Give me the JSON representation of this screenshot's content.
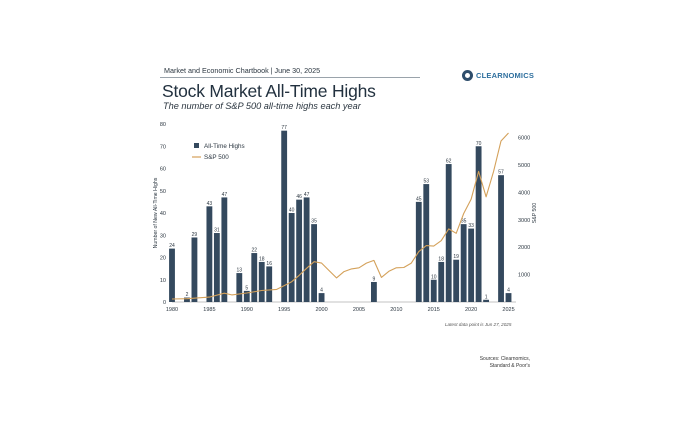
{
  "header": {
    "subheader": "Market and Economic Chartbook | June 30, 2025",
    "title": "Stock Market All-Time Highs",
    "subtitle": "The number of S&P 500 all-time highs each year",
    "logo_text": "CLEARNOMICS"
  },
  "footer": {
    "note": "Latest data point is Jun 27, 2025",
    "sources_line1": "Sources: Clearnomics,",
    "sources_line2": "Standard & Poor's"
  },
  "colors": {
    "bar": "#34495e",
    "line": "#d4a15a",
    "text": "#2b3640"
  },
  "chart_data": {
    "type": "bar",
    "title": "Stock Market All-Time Highs",
    "ylabel": "Number of New All-Time Highs",
    "y2label": "S&P 500",
    "ylim": [
      0,
      80
    ],
    "y2lim": [
      0,
      6500
    ],
    "yticks": [
      0,
      10,
      20,
      30,
      40,
      50,
      60,
      70,
      80
    ],
    "y2ticks": [
      1000,
      2000,
      3000,
      4000,
      5000,
      6000
    ],
    "xlim": [
      1980,
      2026
    ],
    "xticks": [
      1980,
      1985,
      1990,
      1995,
      2000,
      2005,
      2010,
      2015,
      2020,
      2025
    ],
    "legend": {
      "placement": "top-left",
      "bars": "All-Time Highs",
      "line": "S&P 500"
    },
    "series": [
      {
        "name": "All-Time Highs",
        "type": "bar",
        "x": [
          1980,
          1981,
          1982,
          1983,
          1984,
          1985,
          1986,
          1987,
          1988,
          1989,
          1990,
          1991,
          1992,
          1993,
          1994,
          1995,
          1996,
          1997,
          1998,
          1999,
          2000,
          2001,
          2002,
          2003,
          2004,
          2005,
          2006,
          2007,
          2008,
          2009,
          2010,
          2011,
          2012,
          2013,
          2014,
          2015,
          2016,
          2017,
          2018,
          2019,
          2020,
          2021,
          2022,
          2023,
          2024,
          2025
        ],
        "values": [
          24,
          0,
          2,
          29,
          0,
          43,
          31,
          47,
          0,
          13,
          5,
          22,
          18,
          16,
          0,
          77,
          40,
          46,
          47,
          35,
          4,
          0,
          0,
          0,
          0,
          0,
          0,
          9,
          0,
          0,
          0,
          0,
          0,
          45,
          53,
          10,
          18,
          62,
          19,
          35,
          33,
          70,
          1,
          0,
          57,
          4
        ]
      },
      {
        "name": "S&P 500",
        "type": "line",
        "x": [
          1980,
          1982,
          1985,
          1987,
          1988,
          1990,
          1992,
          1994,
          1995,
          1996,
          1997,
          1998,
          1999,
          2000,
          2001,
          2002,
          2003,
          2004,
          2005,
          2006,
          2007,
          2008,
          2009,
          2010,
          2011,
          2012,
          2013,
          2014,
          2015,
          2016,
          2017,
          2018,
          2019,
          2020,
          2021,
          2022,
          2023,
          2024,
          2025
        ],
        "values": [
          110,
          120,
          180,
          320,
          260,
          330,
          420,
          460,
          600,
          740,
          970,
          1230,
          1470,
          1420,
          1150,
          880,
          1110,
          1210,
          1250,
          1420,
          1520,
          900,
          1120,
          1250,
          1260,
          1420,
          1840,
          2060,
          2040,
          2240,
          2670,
          2510,
          3230,
          3750,
          4770,
          3840,
          4770,
          5880,
          6170
        ]
      }
    ]
  }
}
